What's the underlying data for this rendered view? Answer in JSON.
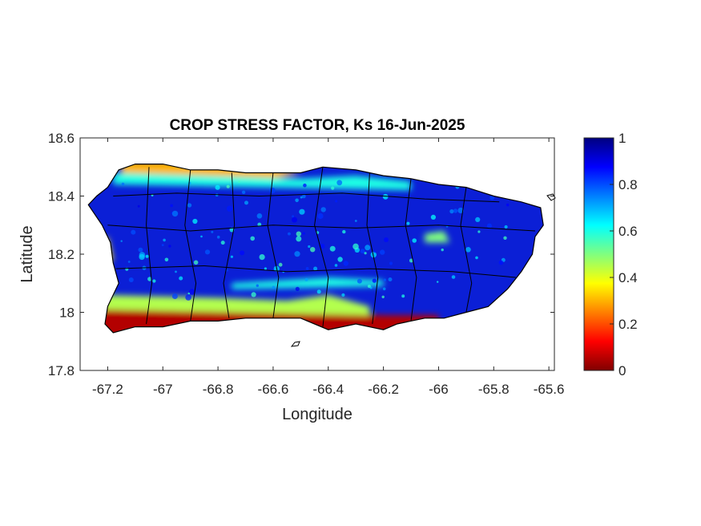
{
  "chart_data": {
    "type": "heatmap",
    "title": "CROP STRESS FACTOR, Ks  16-Jun-2025",
    "xlabel": "Longitude",
    "ylabel": "Latitude",
    "xlim": [
      -67.3,
      -65.58
    ],
    "ylim": [
      17.8,
      18.6
    ],
    "xticks": [
      -67.2,
      -67,
      -66.8,
      -66.6,
      -66.4,
      -66.2,
      -66,
      -65.8,
      -65.6
    ],
    "xtick_labels": [
      "-67.2",
      "-67",
      "-66.8",
      "-66.6",
      "-66.4",
      "-66.2",
      "-66",
      "-65.8",
      "-65.6"
    ],
    "yticks": [
      17.8,
      18,
      18.2,
      18.4,
      18.6
    ],
    "ytick_labels": [
      "17.8",
      "18",
      "18.2",
      "18.4",
      "18.6"
    ],
    "colorbar": {
      "colormap": "jet",
      "range": [
        0,
        1
      ],
      "ticks": [
        0,
        0.2,
        0.4,
        0.6,
        0.8,
        1
      ],
      "tick_labels": [
        "0",
        "0.2",
        "0.4",
        "0.6",
        "0.8",
        "1"
      ]
    },
    "field_summary": {
      "dominant_value": 0.95,
      "south_coast_value": 0.05,
      "north_coast_value": 0.3,
      "central_band_value": 0.6
    },
    "grid": false,
    "overlay": "municipality boundaries (black)"
  },
  "colors": {
    "axes": "#262626",
    "boundaries": "#000000",
    "background": "#ffffff"
  }
}
